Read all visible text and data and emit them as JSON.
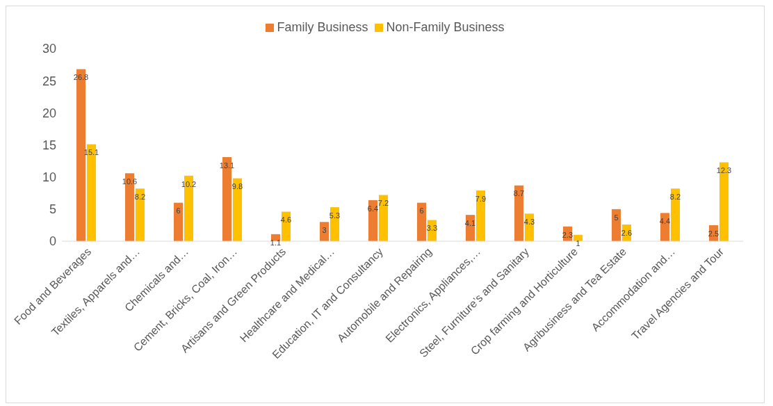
{
  "chart_data": {
    "type": "bar",
    "categories": [
      "Food and Beverages",
      "Textiles, Apparels and…",
      "Chemicals and…",
      "Cement, Bricks, Coal, Iron…",
      "Artisans and Green Products",
      "Healthcare and Medical…",
      "Education, IT and Consultancy",
      "Automobile and Repairing",
      "Electronics, Appliances,…",
      "Steel, Furniture’s and Sanitary",
      "Crop farming and Horticulture",
      "Agribusiness and Tea Estate",
      "Accommodation and…",
      "Travel Agencies and Tour"
    ],
    "series": [
      {
        "name": "Family Business",
        "color": "#ed7d31",
        "values": [
          26.8,
          10.6,
          6,
          13.1,
          1.1,
          3,
          6.4,
          6,
          4.1,
          8.7,
          2.3,
          5,
          4.4,
          2.5
        ]
      },
      {
        "name": "Non-Family Business",
        "color": "#ffc000",
        "values": [
          15.1,
          8.2,
          10.2,
          9.8,
          4.6,
          5.3,
          7.2,
          3.3,
          7.9,
          4.3,
          1,
          2.6,
          8.2,
          12.3
        ]
      }
    ],
    "ylim": [
      0,
      30
    ],
    "yticks": [
      0,
      5,
      10,
      15,
      20,
      25,
      30
    ],
    "grid": false,
    "legend": "top",
    "data_labels": true
  }
}
